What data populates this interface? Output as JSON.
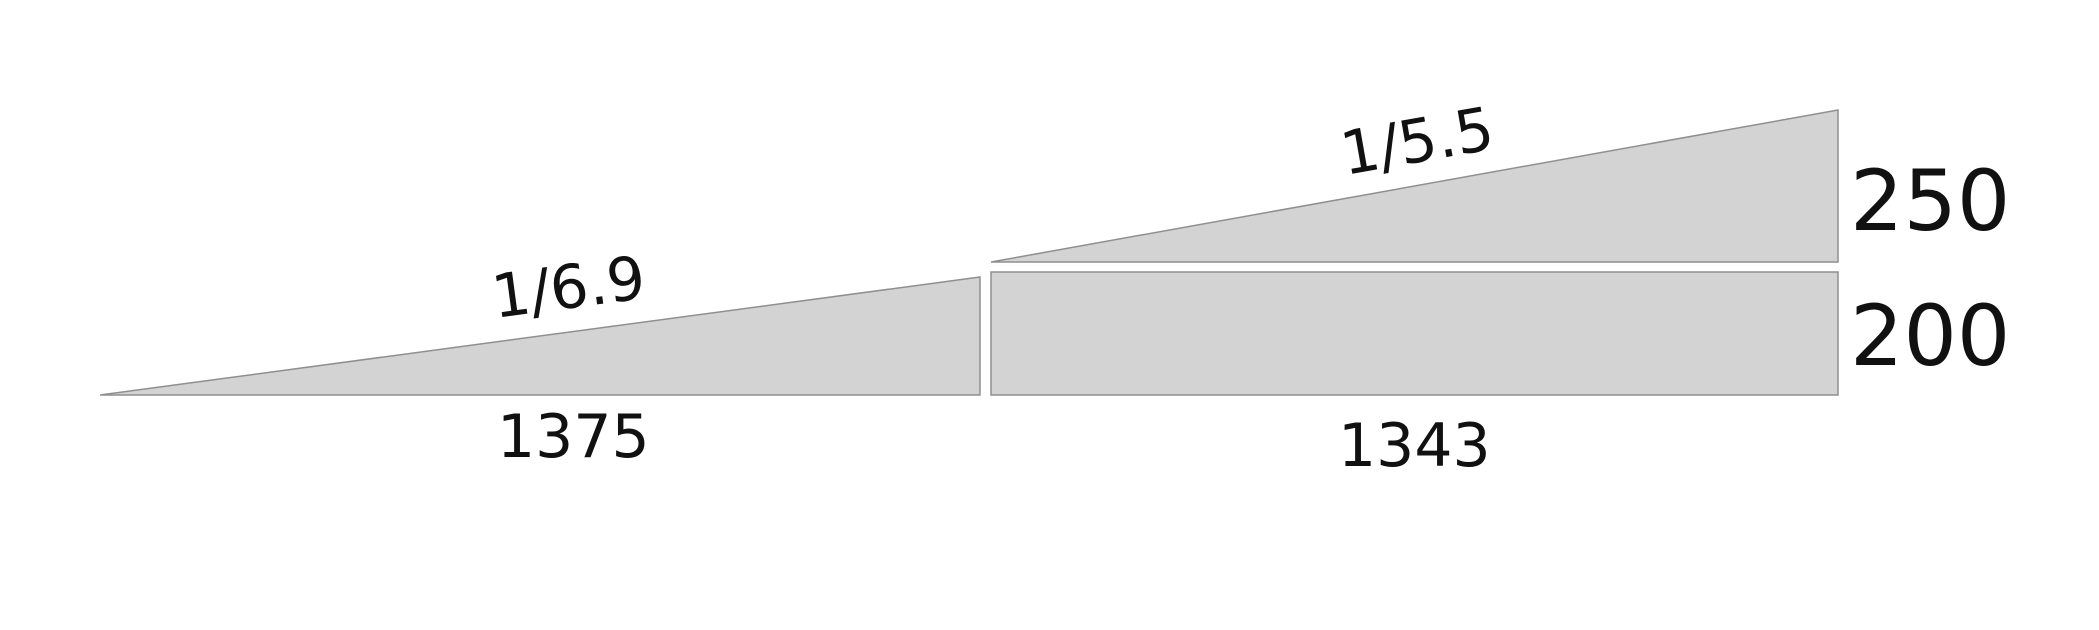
{
  "ramp_left": {
    "slope_label": "1/6.9",
    "length_label": "1375"
  },
  "ramp_right": {
    "slope_label": "1/5.5",
    "length_label": "1343",
    "rise_label": "250"
  },
  "block": {
    "height_label": "200"
  },
  "colors": {
    "fill": "#d3d3d3",
    "stroke": "#8f8f8f",
    "text": "#111111"
  }
}
